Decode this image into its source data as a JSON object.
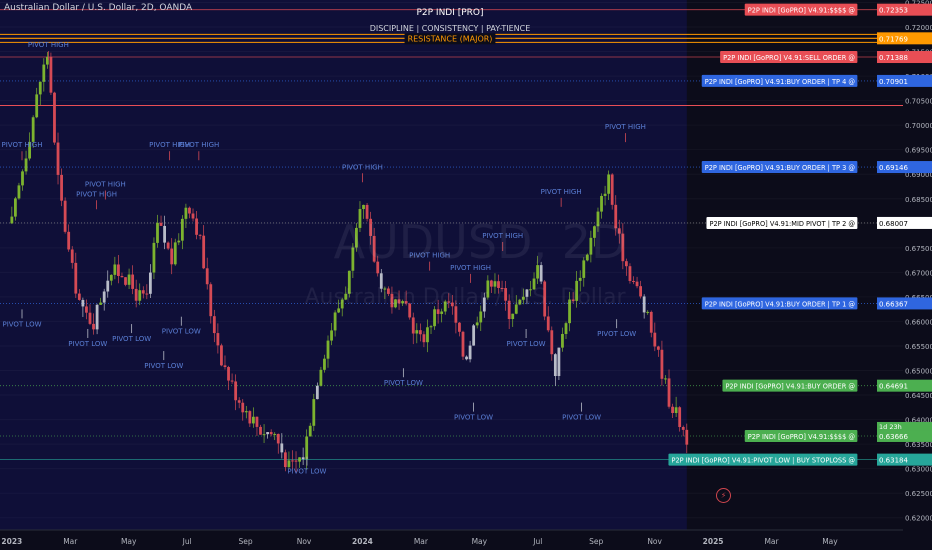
{
  "header": {
    "symbol_title": "Australian Dollar / U.S. Dollar, 2D, OANDA",
    "indicator_title": "P2P INDI [PRO]",
    "indicator_subtitle": "DISCIPLINE  |  CONSISTENCY  |  PAY-TIENCE"
  },
  "watermark": {
    "symbol": "AUDUSD, 2D",
    "description": "Australian Dollar / U.S. Dollar"
  },
  "colors": {
    "background": "#0c0c1a",
    "plot_area": "#0f0f38",
    "axis_text": "#b2b5be",
    "up_candle": "#7cb32f",
    "down_candle": "#d54a55",
    "neutral_candle": "#b8bcc8",
    "pivot_label": "#5b7fd6",
    "resistance": "#ff9800"
  },
  "chart_data": {
    "type": "candlestick",
    "ylim": [
      0.6175,
      0.7255
    ],
    "y_ticks": [
      "0.72500",
      "0.72000",
      "0.71500",
      "0.71000",
      "0.70500",
      "0.70000",
      "0.69500",
      "0.69000",
      "0.68500",
      "0.68000",
      "0.67500",
      "0.67000",
      "0.66500",
      "0.66000",
      "0.65500",
      "0.65000",
      "0.64500",
      "0.64000",
      "0.63500",
      "0.63000",
      "0.62500",
      "0.62000"
    ],
    "x_ticks": [
      {
        "label": "2023",
        "pos": 0.0,
        "bold": true
      },
      {
        "label": "Mar",
        "pos": 2.0
      },
      {
        "label": "May",
        "pos": 4.0
      },
      {
        "label": "Jul",
        "pos": 6.0
      },
      {
        "label": "Sep",
        "pos": 8.0
      },
      {
        "label": "Nov",
        "pos": 10.0
      },
      {
        "label": "2024",
        "pos": 12.0,
        "bold": true
      },
      {
        "label": "Mar",
        "pos": 14.0
      },
      {
        "label": "May",
        "pos": 16.0
      },
      {
        "label": "Jul",
        "pos": 18.0
      },
      {
        "label": "Sep",
        "pos": 20.0
      },
      {
        "label": "Nov",
        "pos": 22.0
      },
      {
        "label": "2025",
        "pos": 24.0,
        "bold": true
      },
      {
        "label": "Mar",
        "pos": 26.0
      },
      {
        "label": "May",
        "pos": 28.0
      }
    ],
    "x_range": [
      -0.2,
      30.5
    ],
    "last_candle_pos": 23.1,
    "current_price": "0.63666",
    "countdown": "1d 23h",
    "price_path": [
      [
        0.0,
        0.68
      ],
      [
        0.5,
        0.695
      ],
      [
        1.0,
        0.71
      ],
      [
        1.25,
        0.715
      ],
      [
        1.5,
        0.692
      ],
      [
        2.0,
        0.672
      ],
      [
        2.4,
        0.662
      ],
      [
        2.8,
        0.66
      ],
      [
        3.3,
        0.67
      ],
      [
        3.8,
        0.67
      ],
      [
        4.2,
        0.666
      ],
      [
        4.6,
        0.664
      ],
      [
        5.0,
        0.68
      ],
      [
        5.5,
        0.672
      ],
      [
        6.0,
        0.685
      ],
      [
        6.4,
        0.678
      ],
      [
        6.8,
        0.662
      ],
      [
        7.2,
        0.652
      ],
      [
        7.6,
        0.646
      ],
      [
        8.0,
        0.642
      ],
      [
        8.5,
        0.638
      ],
      [
        9.0,
        0.637
      ],
      [
        9.5,
        0.63
      ],
      [
        10.0,
        0.633
      ],
      [
        10.5,
        0.65
      ],
      [
        11.0,
        0.66
      ],
      [
        11.5,
        0.668
      ],
      [
        12.0,
        0.684
      ],
      [
        12.5,
        0.67
      ],
      [
        13.0,
        0.664
      ],
      [
        13.5,
        0.662
      ],
      [
        14.0,
        0.656
      ],
      [
        14.5,
        0.662
      ],
      [
        15.0,
        0.664
      ],
      [
        15.5,
        0.652
      ],
      [
        16.0,
        0.663
      ],
      [
        16.5,
        0.67
      ],
      [
        17.0,
        0.662
      ],
      [
        17.5,
        0.664
      ],
      [
        18.0,
        0.672
      ],
      [
        18.3,
        0.66
      ],
      [
        18.6,
        0.65
      ],
      [
        19.0,
        0.662
      ],
      [
        19.5,
        0.671
      ],
      [
        20.0,
        0.68
      ],
      [
        20.4,
        0.69
      ],
      [
        20.7,
        0.678
      ],
      [
        21.0,
        0.672
      ],
      [
        21.5,
        0.665
      ],
      [
        22.0,
        0.656
      ],
      [
        22.5,
        0.644
      ],
      [
        23.1,
        0.6365
      ]
    ],
    "pivot_labels": [
      {
        "text": "PIVOT HIGH",
        "x": 1.25,
        "price": 0.7159,
        "type": "high"
      },
      {
        "text": "PIVOT HIGH",
        "x": -0.2,
        "price": 0.6955,
        "type": "high"
      },
      {
        "text": "PIVOT HIGH",
        "x": 2.9,
        "price": 0.6855,
        "type": "high"
      },
      {
        "text": "PIVOT HIGH",
        "x": 3.2,
        "price": 0.6875,
        "type": "high"
      },
      {
        "text": "PIVOT HIGH",
        "x": 5.4,
        "price": 0.6955,
        "type": "high"
      },
      {
        "text": "PIVOT HIGH",
        "x": 6.4,
        "price": 0.6955,
        "type": "high"
      },
      {
        "text": "PIVOT HIGH",
        "x": 12.0,
        "price": 0.691,
        "type": "high"
      },
      {
        "text": "PIVOT HIGH",
        "x": 14.3,
        "price": 0.673,
        "type": "high"
      },
      {
        "text": "PIVOT HIGH",
        "x": 15.7,
        "price": 0.6705,
        "type": "high"
      },
      {
        "text": "PIVOT HIGH",
        "x": 16.8,
        "price": 0.677,
        "type": "high"
      },
      {
        "text": "PIVOT HIGH",
        "x": 18.8,
        "price": 0.686,
        "type": "high"
      },
      {
        "text": "PIVOT HIGH",
        "x": 21.0,
        "price": 0.6992,
        "type": "high"
      },
      {
        "text": "PIVOT LOW",
        "x": 0.0,
        "price": 0.659,
        "type": "low"
      },
      {
        "text": "PIVOT LOW",
        "x": 2.6,
        "price": 0.655,
        "type": "low"
      },
      {
        "text": "PIVOT LOW",
        "x": 4.1,
        "price": 0.656,
        "type": "low"
      },
      {
        "text": "PIVOT LOW",
        "x": 5.8,
        "price": 0.6575,
        "type": "low"
      },
      {
        "text": "PIVOT LOW",
        "x": 5.2,
        "price": 0.6505,
        "type": "low"
      },
      {
        "text": "PIVOT LOW",
        "x": 10.1,
        "price": 0.629,
        "type": "low"
      },
      {
        "text": "PIVOT LOW",
        "x": 13.4,
        "price": 0.647,
        "type": "low"
      },
      {
        "text": "PIVOT LOW",
        "x": 15.8,
        "price": 0.64,
        "type": "low"
      },
      {
        "text": "PIVOT LOW",
        "x": 17.6,
        "price": 0.655,
        "type": "low"
      },
      {
        "text": "PIVOT LOW",
        "x": 19.5,
        "price": 0.64,
        "type": "low"
      },
      {
        "text": "PIVOT LOW",
        "x": 20.7,
        "price": 0.657,
        "type": "low"
      }
    ],
    "levels": [
      {
        "label": "P2P INDI [GoPRO] V4.91:$$$$ @",
        "price": 0.72353,
        "price_text": "0.72353",
        "color": "#e84e55",
        "line": "#e84e55",
        "style": "solid",
        "label_fill": true
      },
      {
        "label": "RESISTANCE (MAJOR)",
        "price": 0.71769,
        "price_text": "0.71769",
        "color": "#ff9800",
        "line": "#ff9800",
        "style": "resistance",
        "label_fill": false
      },
      {
        "label": "P2P INDI [GoPRO] V4.91:SELL ORDER @",
        "price": 0.71388,
        "price_text": "0.71388",
        "color": "#e84e55",
        "line": "#e84e55",
        "style": "solid",
        "label_fill": true
      },
      {
        "label": "P2P INDI [GoPRO] V4.91:BUY ORDER | TP 4 @",
        "price": 0.70901,
        "price_text": "0.70901",
        "color": "#2f66e0",
        "line": "#2f66e0",
        "style": "dotted",
        "label_fill": true
      },
      {
        "label": "P2P INDI [GoPRO] V4.91:BUY ORDER | TP 3 @",
        "price": 0.69146,
        "price_text": "0.69146",
        "color": "#2f66e0",
        "line": "#2f66e0",
        "style": "dotted",
        "label_fill": true
      },
      {
        "label": "P2P INDI [GoPRO] V4.91:MID PIVOT | TP 2 @",
        "price": 0.68007,
        "price_text": "0.68007",
        "color": "#ffffff",
        "line": "#888888",
        "style": "dotted",
        "label_fill": true
      },
      {
        "label": "P2P INDI [GoPRO] V4.91:BUY ORDER | TP 1 @",
        "price": 0.66367,
        "price_text": "0.66367",
        "color": "#2f66e0",
        "line": "#2f66e0",
        "style": "dotted",
        "label_fill": true
      },
      {
        "label": "P2P INDI [GoPRO] V4.91:BUY ORDER @",
        "price": 0.64691,
        "price_text": "0.64691",
        "color": "#4caf50",
        "line": "#4caf50",
        "style": "dotted",
        "label_fill": true
      },
      {
        "label": "P2P INDI [GoPRO] V4.91:$$$$ @",
        "price": 0.63666,
        "price_text": "0.63666",
        "color": "#4caf50",
        "line": "#4caf50",
        "style": "dotted",
        "label_fill": true
      },
      {
        "label": "P2P INDI [GoPRO] V4.91:PIVOT LOW | BUY STOPLOSS @",
        "price": 0.63184,
        "price_text": "0.63184",
        "color": "#26a69a",
        "line": "#26a69a",
        "style": "solid",
        "label_fill": true
      }
    ],
    "extra_line_price": 0.704
  }
}
